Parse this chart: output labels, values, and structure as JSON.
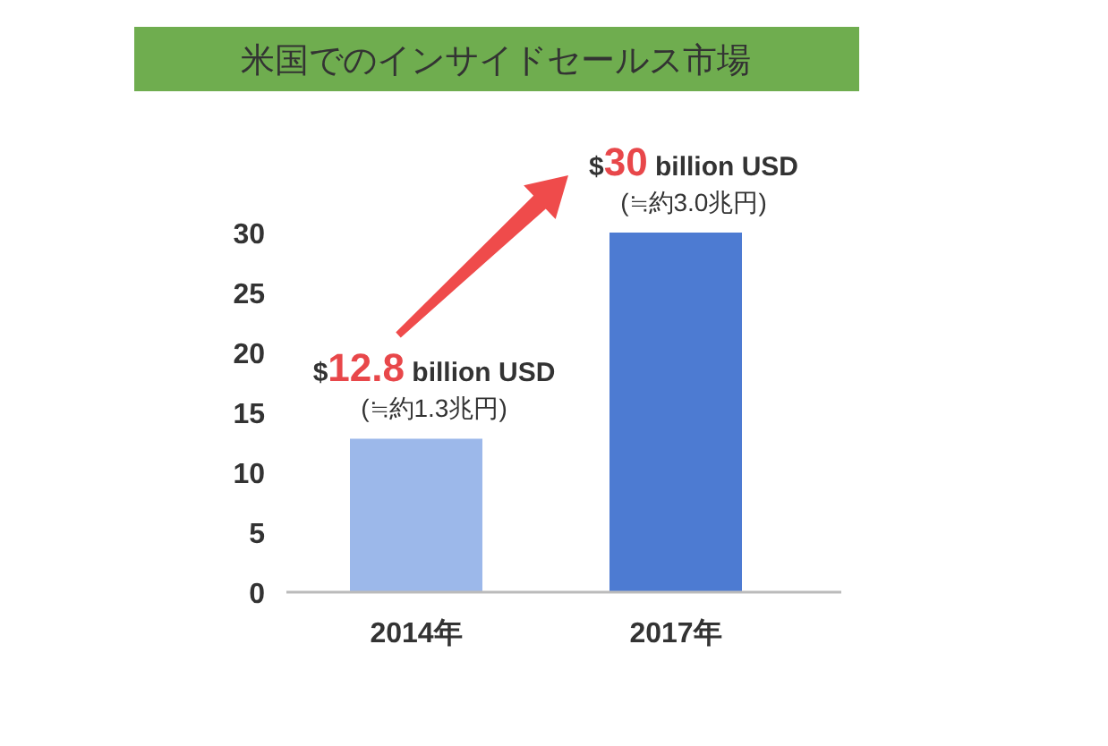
{
  "chart_data": {
    "type": "bar",
    "title": "米国でのインサイドセールス市場",
    "categories": [
      "2014年",
      "2017年"
    ],
    "values": [
      12.8,
      30
    ],
    "colors": [
      "#9cb8ea",
      "#4d7bd2"
    ],
    "value_labels": [
      "$12.8 billion USD",
      "$30 billion USD"
    ],
    "annotations": [
      {
        "text": "(≒約1.3兆円)",
        "x": "2014年",
        "y": 12.8
      },
      {
        "text": "(≒約3.0兆円)",
        "x": "2017年",
        "y": 30
      }
    ],
    "ylim": [
      0,
      30
    ],
    "yticks": [
      0,
      5,
      10,
      15,
      20,
      25,
      30
    ],
    "grid": false
  }
}
